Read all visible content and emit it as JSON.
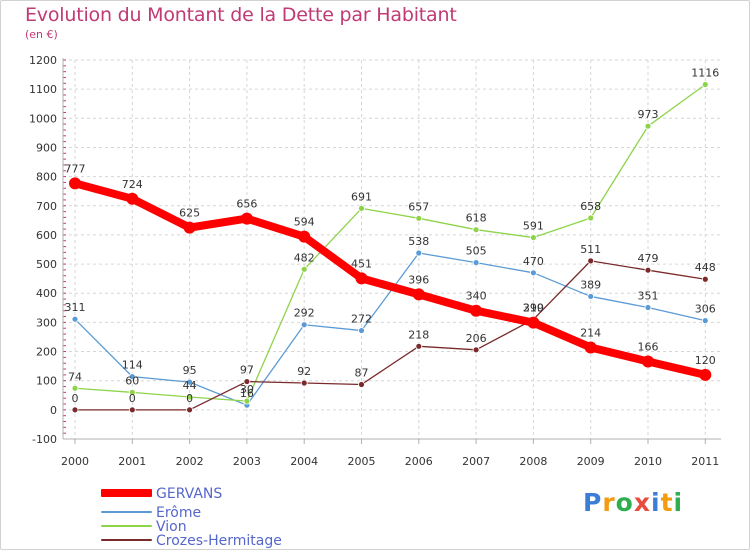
{
  "header": {
    "title": "Evolution du Montant de la Dette par Habitant",
    "subtitle": "(en €)"
  },
  "chart_data": {
    "type": "line",
    "title": "Evolution du Montant de la Dette par Habitant",
    "subtitle": "(en €)",
    "xlabel": "",
    "ylabel": "",
    "categories": [
      "2000",
      "2001",
      "2002",
      "2003",
      "2004",
      "2005",
      "2006",
      "2007",
      "2008",
      "2009",
      "2010",
      "2011"
    ],
    "ylim": [
      -100,
      1200
    ],
    "yticks": [
      "-100",
      "0",
      "100",
      "200",
      "300",
      "400",
      "500",
      "600",
      "700",
      "800",
      "900",
      "1000",
      "1100",
      "1200"
    ],
    "grid": true,
    "legend_position": "bottom-left",
    "series": [
      {
        "name": "GERVANS",
        "color": "#ff0000",
        "values": [
          777,
          724,
          625,
          656,
          594,
          451,
          396,
          340,
          299,
          214,
          166,
          120
        ],
        "labels": [
          "777",
          "724",
          "625",
          "656",
          "594",
          "451",
          "396",
          "340",
          "299",
          "214",
          "166",
          "120"
        ]
      },
      {
        "name": "Erôme",
        "color": "#5b9bd5",
        "values": [
          311,
          114,
          95,
          16,
          292,
          272,
          538,
          505,
          470,
          389,
          351,
          306
        ],
        "labels": [
          "311",
          "114",
          "95",
          "16",
          "292",
          "272",
          "538",
          "505",
          "470",
          "389",
          "351",
          "306"
        ]
      },
      {
        "name": "Vion",
        "color": "#8ed44a",
        "values": [
          74,
          60,
          44,
          30,
          482,
          691,
          657,
          618,
          591,
          658,
          973,
          1116
        ],
        "labels": [
          "74",
          "60",
          "44",
          "30",
          "482",
          "691",
          "657",
          "618",
          "591",
          "658",
          "973",
          "1116"
        ]
      },
      {
        "name": "Crozes-Hermitage",
        "color": "#7a2a2a",
        "values": [
          0,
          0,
          0,
          97,
          92,
          87,
          218,
          206,
          310,
          511,
          479,
          448
        ],
        "labels": [
          "0",
          "0",
          "0",
          "97",
          "92",
          "87",
          "218",
          "206",
          "310",
          "511",
          "479",
          "448"
        ]
      }
    ]
  },
  "brand": {
    "text": "Proxiti",
    "colors": [
      "#3a7fd5",
      "#f39c12",
      "#2fae4f",
      "#e74c3c",
      "#3a7fd5",
      "#f39c12",
      "#2fae4f"
    ]
  }
}
